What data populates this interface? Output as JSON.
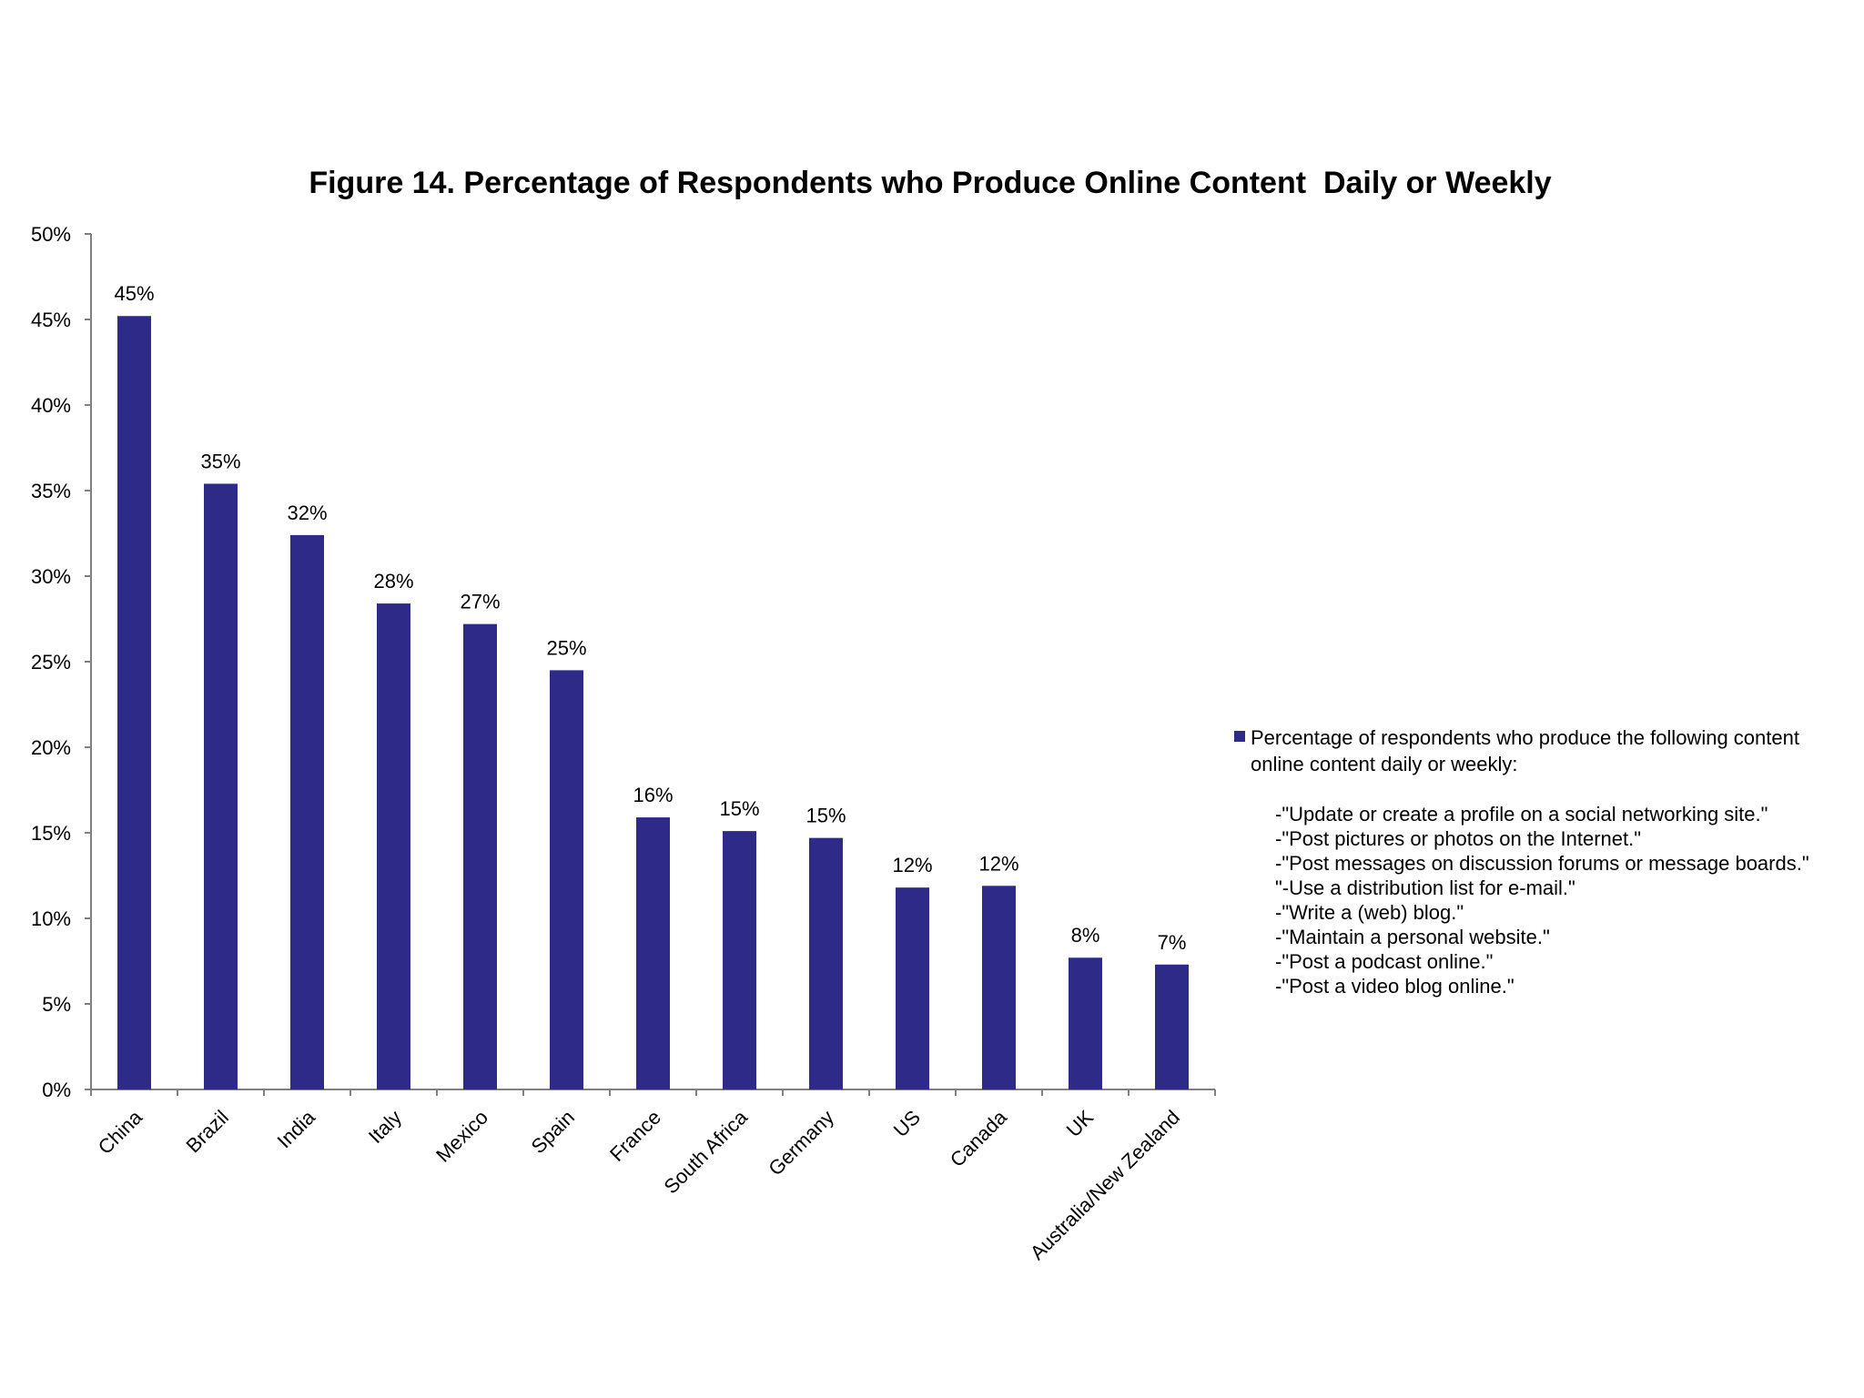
{
  "chart_data": {
    "type": "bar",
    "title": "Figure 14. Percentage of Respondents who Produce Online Content  Daily or Weekly",
    "categories": [
      "China",
      "Brazil",
      "India",
      "Italy",
      "Mexico",
      "Spain",
      "France",
      "South Africa",
      "Germany",
      "US",
      "Canada",
      "UK",
      "Australia/New Zealand"
    ],
    "series": [
      {
        "name": "Percentage of respondents  who produce the following content online content daily or weekly:",
        "values": [
          45.2,
          35.4,
          32.4,
          28.4,
          27.2,
          24.5,
          15.9,
          15.1,
          14.7,
          11.8,
          11.9,
          7.7,
          7.3
        ],
        "labels": [
          "45%",
          "35%",
          "32%",
          "28%",
          "27%",
          "25%",
          "16%",
          "15%",
          "15%",
          "12%",
          "12%",
          "8%",
          "7%"
        ]
      }
    ],
    "ylim": [
      0,
      50
    ],
    "yticks": [
      "0%",
      "5%",
      "10%",
      "15%",
      "20%",
      "25%",
      "30%",
      "35%",
      "40%",
      "45%",
      "50%"
    ],
    "xlabel": "",
    "ylabel": "",
    "grid": false,
    "legend_position": "right",
    "bar_color": "#2e2a87",
    "legend_notes": [
      "-\"Update or create a profile on a social networking site.\"",
      "-\"Post pictures or photos on the Internet.\"",
      "-\"Post messages on discussion forums or message boards.\"",
      "\"-Use a distribution list for e-mail.\"",
      "-\"Write a (web) blog.\"",
      "-\"Maintain a personal website.\"",
      "-\"Post a podcast online.\"",
      "-\"Post a video blog online.\""
    ]
  }
}
